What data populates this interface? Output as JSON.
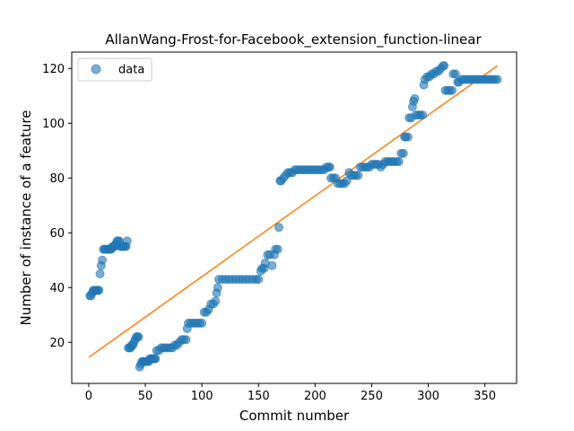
{
  "chart_data": {
    "type": "scatter",
    "title": "AllanWang-Frost-for-Facebook_extension_function-linear",
    "xlabel": "Commit number",
    "ylabel": "Number of instance of a feature",
    "xlim": [
      -15,
      378
    ],
    "ylim": [
      5,
      126
    ],
    "xticks": [
      0,
      50,
      100,
      150,
      200,
      250,
      300,
      350
    ],
    "yticks": [
      20,
      40,
      60,
      80,
      100,
      120
    ],
    "grid": false,
    "legend_position": "top-left",
    "series": [
      {
        "name": "data",
        "kind": "scatter",
        "color": "#1f77b4",
        "points": [
          [
            1,
            37
          ],
          [
            2,
            37
          ],
          [
            3,
            38
          ],
          [
            4,
            39
          ],
          [
            5,
            39
          ],
          [
            6,
            39
          ],
          [
            7,
            39
          ],
          [
            8,
            39
          ],
          [
            9,
            39
          ],
          [
            10,
            45
          ],
          [
            11,
            48
          ],
          [
            12,
            50
          ],
          [
            13,
            54
          ],
          [
            14,
            54
          ],
          [
            15,
            54
          ],
          [
            16,
            54
          ],
          [
            17,
            54
          ],
          [
            18,
            54
          ],
          [
            19,
            54
          ],
          [
            20,
            54
          ],
          [
            21,
            55
          ],
          [
            22,
            55
          ],
          [
            23,
            55
          ],
          [
            24,
            56
          ],
          [
            25,
            57
          ],
          [
            26,
            57
          ],
          [
            27,
            57
          ],
          [
            28,
            55
          ],
          [
            29,
            55
          ],
          [
            30,
            55
          ],
          [
            31,
            55
          ],
          [
            32,
            55
          ],
          [
            33,
            55
          ],
          [
            34,
            57
          ],
          [
            35,
            18
          ],
          [
            36,
            18
          ],
          [
            37,
            18
          ],
          [
            38,
            19
          ],
          [
            39,
            19
          ],
          [
            40,
            20
          ],
          [
            41,
            21
          ],
          [
            42,
            22
          ],
          [
            43,
            22
          ],
          [
            44,
            22
          ],
          [
            45,
            11
          ],
          [
            46,
            12
          ],
          [
            47,
            13
          ],
          [
            48,
            13
          ],
          [
            49,
            13
          ],
          [
            50,
            13
          ],
          [
            51,
            13
          ],
          [
            52,
            13
          ],
          [
            53,
            13
          ],
          [
            54,
            14
          ],
          [
            55,
            14
          ],
          [
            56,
            14
          ],
          [
            57,
            14
          ],
          [
            58,
            14
          ],
          [
            59,
            14
          ],
          [
            60,
            17
          ],
          [
            62,
            17
          ],
          [
            64,
            18
          ],
          [
            66,
            18
          ],
          [
            68,
            18
          ],
          [
            70,
            18
          ],
          [
            72,
            18
          ],
          [
            74,
            18
          ],
          [
            76,
            19
          ],
          [
            78,
            19
          ],
          [
            80,
            20
          ],
          [
            82,
            21
          ],
          [
            84,
            21
          ],
          [
            86,
            21
          ],
          [
            87,
            25
          ],
          [
            88,
            27
          ],
          [
            90,
            27
          ],
          [
            92,
            27
          ],
          [
            94,
            27
          ],
          [
            96,
            27
          ],
          [
            98,
            27
          ],
          [
            100,
            27
          ],
          [
            102,
            31
          ],
          [
            104,
            31
          ],
          [
            106,
            32
          ],
          [
            108,
            34
          ],
          [
            110,
            34
          ],
          [
            112,
            35
          ],
          [
            113,
            38
          ],
          [
            114,
            40
          ],
          [
            115,
            43
          ],
          [
            118,
            43
          ],
          [
            121,
            43
          ],
          [
            124,
            43
          ],
          [
            127,
            43
          ],
          [
            130,
            43
          ],
          [
            133,
            43
          ],
          [
            136,
            43
          ],
          [
            139,
            43
          ],
          [
            142,
            43
          ],
          [
            145,
            43
          ],
          [
            148,
            43
          ],
          [
            150,
            43
          ],
          [
            152,
            46
          ],
          [
            153,
            47
          ],
          [
            155,
            47
          ],
          [
            156,
            49
          ],
          [
            158,
            52
          ],
          [
            160,
            52
          ],
          [
            162,
            48
          ],
          [
            164,
            52
          ],
          [
            165,
            54
          ],
          [
            167,
            54
          ],
          [
            168,
            62
          ],
          [
            169,
            79
          ],
          [
            170,
            79
          ],
          [
            172,
            80
          ],
          [
            174,
            81
          ],
          [
            176,
            82
          ],
          [
            178,
            82
          ],
          [
            180,
            82
          ],
          [
            182,
            83
          ],
          [
            184,
            83
          ],
          [
            186,
            83
          ],
          [
            188,
            83
          ],
          [
            190,
            83
          ],
          [
            192,
            83
          ],
          [
            194,
            83
          ],
          [
            196,
            83
          ],
          [
            198,
            83
          ],
          [
            200,
            83
          ],
          [
            202,
            83
          ],
          [
            204,
            83
          ],
          [
            206,
            83
          ],
          [
            208,
            83
          ],
          [
            210,
            84
          ],
          [
            212,
            84
          ],
          [
            213,
            84
          ],
          [
            214,
            80
          ],
          [
            216,
            80
          ],
          [
            218,
            80
          ],
          [
            220,
            78
          ],
          [
            222,
            78
          ],
          [
            224,
            78
          ],
          [
            226,
            78
          ],
          [
            228,
            79
          ],
          [
            230,
            82
          ],
          [
            232,
            81
          ],
          [
            234,
            81
          ],
          [
            236,
            81
          ],
          [
            238,
            81
          ],
          [
            240,
            84
          ],
          [
            242,
            84
          ],
          [
            244,
            84
          ],
          [
            246,
            84
          ],
          [
            248,
            84
          ],
          [
            250,
            85
          ],
          [
            252,
            85
          ],
          [
            254,
            85
          ],
          [
            256,
            85
          ],
          [
            258,
            84
          ],
          [
            260,
            85
          ],
          [
            262,
            86
          ],
          [
            264,
            86
          ],
          [
            266,
            86
          ],
          [
            268,
            86
          ],
          [
            270,
            86
          ],
          [
            272,
            86
          ],
          [
            274,
            86
          ],
          [
            276,
            89
          ],
          [
            278,
            89
          ],
          [
            279,
            95
          ],
          [
            280,
            95
          ],
          [
            282,
            95
          ],
          [
            283,
            102
          ],
          [
            285,
            102
          ],
          [
            286,
            106
          ],
          [
            287,
            108
          ],
          [
            288,
            109
          ],
          [
            289,
            103
          ],
          [
            291,
            103
          ],
          [
            293,
            103
          ],
          [
            295,
            103
          ],
          [
            296,
            114
          ],
          [
            297,
            116
          ],
          [
            299,
            117
          ],
          [
            301,
            117
          ],
          [
            303,
            118
          ],
          [
            305,
            118
          ],
          [
            307,
            119
          ],
          [
            309,
            119
          ],
          [
            311,
            120
          ],
          [
            313,
            121
          ],
          [
            314,
            121
          ],
          [
            315,
            112
          ],
          [
            317,
            112
          ],
          [
            319,
            112
          ],
          [
            321,
            112
          ],
          [
            322,
            118
          ],
          [
            324,
            118
          ],
          [
            326,
            115
          ],
          [
            327,
            115
          ],
          [
            329,
            116
          ],
          [
            331,
            116
          ],
          [
            333,
            116
          ],
          [
            335,
            116
          ],
          [
            337,
            116
          ],
          [
            339,
            116
          ],
          [
            341,
            116
          ],
          [
            343,
            116
          ],
          [
            345,
            116
          ],
          [
            347,
            116
          ],
          [
            349,
            116
          ],
          [
            351,
            116
          ],
          [
            353,
            116
          ],
          [
            355,
            116
          ],
          [
            357,
            116
          ],
          [
            359,
            116
          ],
          [
            361,
            116
          ]
        ]
      },
      {
        "kind": "line",
        "color": "#ff7f0e",
        "points": [
          [
            0,
            14.5
          ],
          [
            361,
            121
          ]
        ]
      }
    ]
  }
}
